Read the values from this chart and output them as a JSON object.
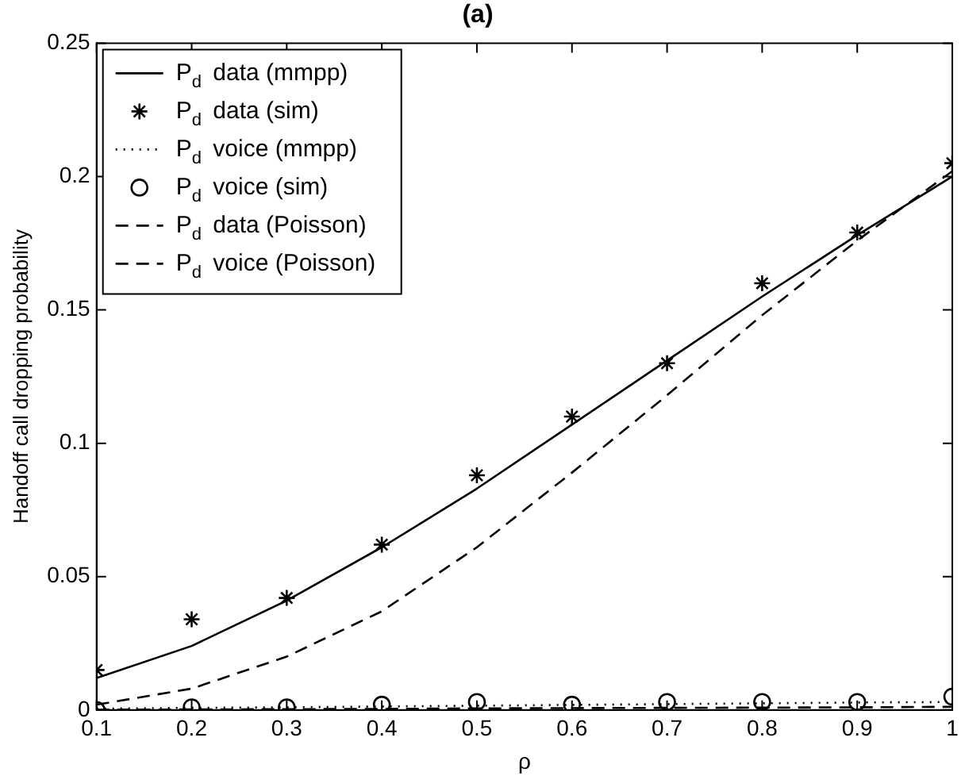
{
  "chart_data": {
    "type": "line",
    "title": "(a)",
    "xlabel": "ρ",
    "ylabel": "Handoff call dropping probability",
    "x": [
      0.1,
      0.2,
      0.3,
      0.4,
      0.5,
      0.6,
      0.7,
      0.8,
      0.9,
      1
    ],
    "xlim": [
      0.1,
      1
    ],
    "xticks": [
      0.1,
      0.2,
      0.3,
      0.4,
      0.5,
      0.6,
      0.7,
      0.8,
      0.9,
      1
    ],
    "ylim": [
      0,
      0.25
    ],
    "yticks": [
      0,
      0.05,
      0.1,
      0.15,
      0.2,
      0.25
    ],
    "grid": false,
    "legend": "top left",
    "series": [
      {
        "name": "P$_{d}$ data (mmpp)",
        "type": "line",
        "color": "#000000",
        "line_style": "solid",
        "marker": "none",
        "values": [
          0.012,
          0.024,
          0.041,
          0.061,
          0.083,
          0.107,
          0.131,
          0.155,
          0.178,
          0.2
        ]
      },
      {
        "name": "P$_{d}$ data (sim)",
        "type": "scatter",
        "color": "#000000",
        "marker": "cross",
        "values": [
          0.015,
          0.034,
          0.042,
          0.062,
          0.088,
          0.11,
          0.13,
          0.16,
          0.179,
          0.205
        ]
      },
      {
        "name": "P$_{d}$ voice (mmpp)",
        "type": "line",
        "color": "#000000",
        "line_style": "dotted",
        "marker": "none",
        "values": [
          0.0005,
          0.0008,
          0.001,
          0.0013,
          0.0016,
          0.0019,
          0.0022,
          0.0025,
          0.0028,
          0.003
        ]
      },
      {
        "name": "P$_{d}$ voice (sim)",
        "type": "scatter",
        "color": "#000000",
        "marker": "circle",
        "values": [
          0,
          0.001,
          0.001,
          0.002,
          0.003,
          0.002,
          0.003,
          0.003,
          0.003,
          0.005
        ]
      },
      {
        "name": "P$_{d}$ data (Poisson)",
        "type": "line",
        "color": "#000000",
        "line_style": "dashed",
        "marker": "none",
        "values": [
          0.002,
          0.008,
          0.02,
          0.037,
          0.061,
          0.089,
          0.118,
          0.148,
          0.176,
          0.202
        ]
      },
      {
        "name": "P$_{d}$ voice (Poisson)",
        "type": "line",
        "color": "#000000",
        "line_style": "dashed",
        "marker": "none",
        "values": [
          0.0001,
          0.0002,
          0.0003,
          0.0004,
          0.0006,
          0.0007,
          0.0008,
          0.0009,
          0.001,
          0.0012
        ]
      }
    ]
  }
}
